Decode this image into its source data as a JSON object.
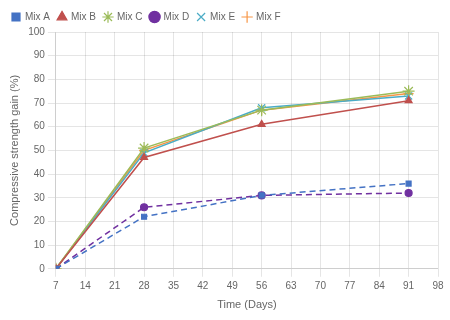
{
  "chart_data": {
    "type": "line",
    "x": [
      7,
      28,
      56,
      91
    ],
    "xlabel": "Time (Days)",
    "ylabel": "Compressive strength gain (%)",
    "series": [
      {
        "name": "Mix A",
        "color": "#4472c4",
        "values": [
          0,
          22,
          31,
          36
        ],
        "marker": "square",
        "line_style": "dashed"
      },
      {
        "name": "Mix B",
        "color": "#c0504d",
        "values": [
          0,
          47,
          61,
          71
        ],
        "marker": "triangle",
        "line_style": "solid"
      },
      {
        "name": "Mix C",
        "color": "#9bbb59",
        "values": [
          0,
          51,
          67,
          75
        ],
        "marker": "star",
        "line_style": "solid"
      },
      {
        "name": "Mix D",
        "color": "#7030a0",
        "values": [
          0,
          26,
          31,
          32
        ],
        "marker": "circle",
        "line_style": "dashed"
      },
      {
        "name": "Mix E",
        "color": "#4bacc6",
        "values": [
          0,
          49,
          68,
          73
        ],
        "marker": "x",
        "line_style": "solid"
      },
      {
        "name": "Mix F",
        "color": "#f79646",
        "values": [
          0,
          50,
          67,
          74
        ],
        "marker": "plus",
        "line_style": "solid"
      }
    ],
    "xlim": [
      7,
      98
    ],
    "ylim": [
      0,
      100
    ],
    "xticks": [
      7,
      14,
      21,
      28,
      35,
      42,
      49,
      56,
      63,
      70,
      77,
      84,
      91,
      98
    ],
    "yticks": [
      0,
      10,
      20,
      30,
      40,
      50,
      60,
      70,
      80,
      90,
      100
    ],
    "grid": true,
    "legend": "upper left"
  }
}
